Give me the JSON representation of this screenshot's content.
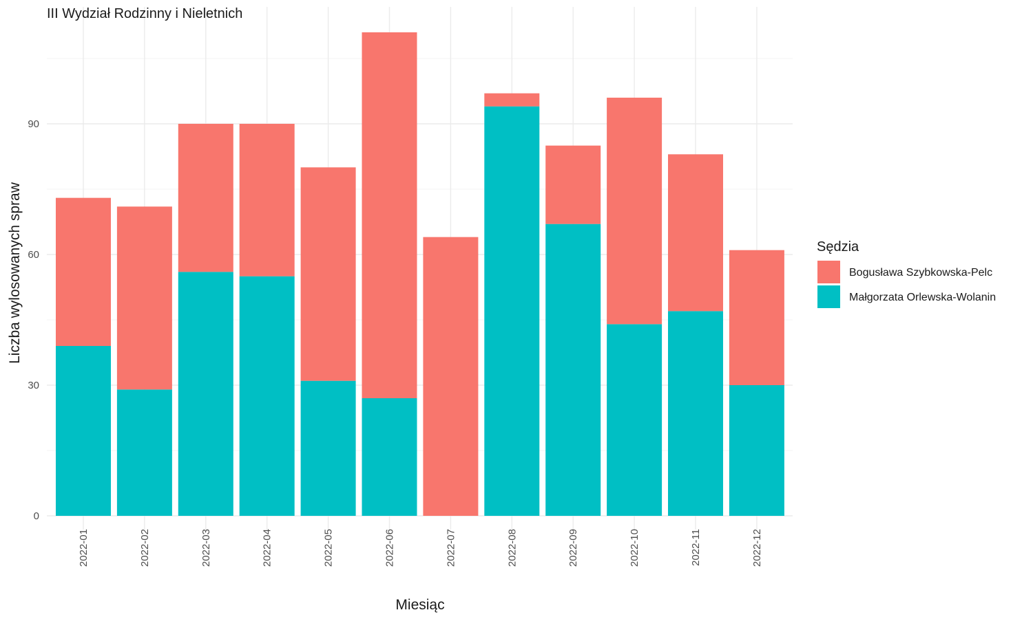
{
  "chart_data": {
    "type": "bar",
    "stacked": true,
    "title": "III Wydział Rodzinny i Nieletnich",
    "xlabel": "Miesiąc",
    "ylabel": "Liczba wylosowanych spraw",
    "categories": [
      "2022-01",
      "2022-02",
      "2022-03",
      "2022-04",
      "2022-05",
      "2022-06",
      "2022-07",
      "2022-08",
      "2022-09",
      "2022-10",
      "2022-11",
      "2022-12"
    ],
    "series": [
      {
        "name": "Małgorzata Orlewska-Wolanin",
        "color": "#00BFC4",
        "values": [
          39,
          29,
          56,
          55,
          31,
          27,
          0,
          94,
          67,
          44,
          47,
          30
        ]
      },
      {
        "name": "Bogusława Szybkowska-Pelc",
        "color": "#F8766D",
        "values": [
          34,
          42,
          34,
          35,
          49,
          84,
          64,
          3,
          18,
          52,
          36,
          31
        ]
      }
    ],
    "ylim": [
      0,
      115
    ],
    "yticks": [
      0,
      30,
      60,
      90
    ],
    "grid": true,
    "legend": {
      "title": "Sędzia",
      "position": "right",
      "order": [
        "Bogusława Szybkowska-Pelc",
        "Małgorzata Orlewska-Wolanin"
      ]
    }
  }
}
